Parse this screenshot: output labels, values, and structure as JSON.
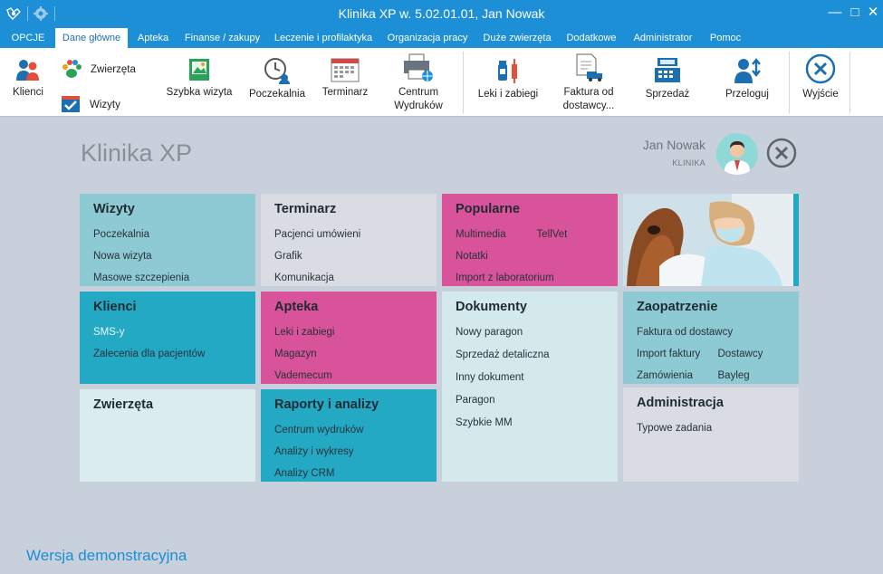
{
  "window": {
    "title": "Klinika XP w. 5.02.01.01, Jan Nowak",
    "minimize": "—",
    "maximize": "□",
    "close": "✕"
  },
  "menu": {
    "tabs": [
      {
        "label": "OPCJE"
      },
      {
        "label": "Dane główne"
      },
      {
        "label": "Apteka"
      },
      {
        "label": "Finanse / zakupy"
      },
      {
        "label": "Leczenie i profilaktyka"
      },
      {
        "label": "Organizacja pracy"
      },
      {
        "label": "Duże zwierzęta"
      },
      {
        "label": "Dodatkowe"
      },
      {
        "label": "Administrator"
      },
      {
        "label": "Pomoc"
      }
    ],
    "active_tab": "Dane główne"
  },
  "ribbon": {
    "klienci": "Klienci",
    "zwierzeta": "Zwierzęta",
    "wizyty": "Wizyty",
    "szybka_wizyta": "Szybka wizyta",
    "poczekalnia": "Poczekalnia",
    "terminarz": "Terminarz",
    "centrum_line1": "Centrum",
    "centrum_line2": "Wydruków",
    "leki": "Leki i zabiegi",
    "faktura_line1": "Faktura od",
    "faktura_line2": "dostawcy...",
    "sprzedaz": "Sprzedaż",
    "przeloguj": "Przeloguj",
    "wyjscie": "Wyjście"
  },
  "header": {
    "app_title": "Klinika XP",
    "user_name": "Jan Nowak",
    "user_role": "KLINIKA"
  },
  "tiles": {
    "wizyty": {
      "title": "Wizyty",
      "items": [
        "Poczekalnia",
        "Nowa wizyta",
        "Masowe szczepienia"
      ]
    },
    "terminarz": {
      "title": "Terminarz",
      "items": [
        "Pacjenci umówieni",
        "Grafik",
        "Komunikacja"
      ]
    },
    "popularne": {
      "title": "Popularne",
      "items": [
        "Multimedia",
        "TellVet",
        "Notatki",
        "Import z laboratorium"
      ]
    },
    "klienci": {
      "title": "Klienci",
      "items": [
        "SMS-y",
        "Zalecenia dla pacjentów"
      ]
    },
    "apteka": {
      "title": "Apteka",
      "items": [
        "Leki i zabiegi",
        "Magazyn",
        "Vademecum"
      ]
    },
    "dokumenty": {
      "title": "Dokumenty",
      "items": [
        "Nowy paragon",
        "Sprzedaż detaliczna",
        "Inny dokument",
        "Paragon",
        "Szybkie MM"
      ]
    },
    "zaopatrzenie": {
      "title": "Zaopatrzenie",
      "items": [
        "Faktura od dostawcy",
        "Import faktury",
        "Dostawcy",
        "Zamówienia",
        "Bayleg"
      ]
    },
    "zwierzeta": {
      "title": "Zwierzęta"
    },
    "raporty": {
      "title": "Raporty i analizy",
      "items": [
        "Centrum wydruków",
        "Analizy i wykresy",
        "Analizy CRM"
      ]
    },
    "administracja": {
      "title": "Administracja",
      "items": [
        "Typowe zadania"
      ]
    }
  },
  "footer": {
    "demo_label": "Wersja demonstracyjna"
  },
  "colors": {
    "titlebar": "#1c8fd6",
    "tile_teal_light": "#8dcad3",
    "tile_pink": "#d9539b",
    "tile_teal": "#24a9c4",
    "tile_grey": "#d9dce2"
  }
}
